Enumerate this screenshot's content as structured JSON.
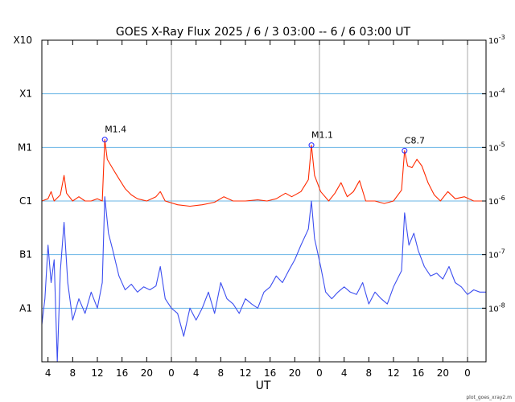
{
  "chart_data": {
    "type": "line",
    "title": "GOES X-Ray Flux   2025 /  6 /  3   03:00 --  6 /  6   03:00   UT",
    "xlabel": "UT",
    "footer": "plot_goes_xray2.m",
    "x_range_hours": [
      0,
      72
    ],
    "x_start_hour_of_day": 3,
    "y_scale": "log",
    "ylim": [
      1e-09,
      0.001
    ],
    "left_flare_classes": [
      {
        "label": "X10",
        "value": 0.001
      },
      {
        "label": "X1",
        "value": 0.0001
      },
      {
        "label": "M1",
        "value": 1e-05
      },
      {
        "label": "C1",
        "value": 1e-06
      },
      {
        "label": "B1",
        "value": 1e-07
      },
      {
        "label": "A1",
        "value": 1e-08
      }
    ],
    "right_ticks": [
      {
        "label": "10^-3",
        "value": 0.001
      },
      {
        "label": "10^-4",
        "value": 0.0001
      },
      {
        "label": "10^-5",
        "value": 1e-05
      },
      {
        "label": "10^-6",
        "value": 1e-06
      },
      {
        "label": "10^-7",
        "value": 1e-07
      },
      {
        "label": "10^-8",
        "value": 1e-08
      }
    ],
    "x_tick_labels": [
      "4",
      "8",
      "12",
      "16",
      "20",
      "0",
      "4",
      "8",
      "12",
      "16",
      "20",
      "0",
      "4",
      "8",
      "12",
      "16",
      "20",
      "0"
    ],
    "day_boundaries_hours": [
      21,
      45,
      69
    ],
    "annotations": [
      {
        "label": "M1.4",
        "x": 10.2,
        "y": 1.4e-05
      },
      {
        "label": "M1.1",
        "x": 43.7,
        "y": 1.1e-05
      },
      {
        "label": "C8.7",
        "x": 58.8,
        "y": 8.7e-06
      }
    ],
    "series": [
      {
        "color": "#ff2a00",
        "points": [
          [
            0,
            1e-06
          ],
          [
            1,
            1.1e-06
          ],
          [
            1.5,
            1.5e-06
          ],
          [
            2,
            1e-06
          ],
          [
            3,
            1.3e-06
          ],
          [
            3.6,
            3e-06
          ],
          [
            4,
            1.4e-06
          ],
          [
            5,
            1e-06
          ],
          [
            6,
            1.2e-06
          ],
          [
            7,
            1e-06
          ],
          [
            8,
            1e-06
          ],
          [
            9,
            1.1e-06
          ],
          [
            9.8,
            1e-06
          ],
          [
            10.2,
            1.4e-05
          ],
          [
            10.6,
            6e-06
          ],
          [
            11.5,
            4e-06
          ],
          [
            12.5,
            2.6e-06
          ],
          [
            13.5,
            1.7e-06
          ],
          [
            14.5,
            1.3e-06
          ],
          [
            15.5,
            1.1e-06
          ],
          [
            17,
            1e-06
          ],
          [
            18.5,
            1.2e-06
          ],
          [
            19.2,
            1.5e-06
          ],
          [
            20,
            1e-06
          ],
          [
            22,
            8.5e-07
          ],
          [
            24,
            8e-07
          ],
          [
            26,
            8.5e-07
          ],
          [
            28,
            9.5e-07
          ],
          [
            29.5,
            1.2e-06
          ],
          [
            31,
            1e-06
          ],
          [
            33,
            1e-06
          ],
          [
            35,
            1.05e-06
          ],
          [
            36.5,
            1e-06
          ],
          [
            38,
            1.1e-06
          ],
          [
            39.5,
            1.4e-06
          ],
          [
            40.5,
            1.2e-06
          ],
          [
            42,
            1.5e-06
          ],
          [
            43.2,
            2.5e-06
          ],
          [
            43.7,
            1.1e-05
          ],
          [
            44.2,
            3e-06
          ],
          [
            45.2,
            1.5e-06
          ],
          [
            46.5,
            1e-06
          ],
          [
            47.5,
            1.4e-06
          ],
          [
            48.5,
            2.2e-06
          ],
          [
            49.5,
            1.2e-06
          ],
          [
            50.5,
            1.5e-06
          ],
          [
            51.5,
            2.4e-06
          ],
          [
            52.5,
            1e-06
          ],
          [
            54,
            1e-06
          ],
          [
            55.5,
            9e-07
          ],
          [
            57,
            1e-06
          ],
          [
            58.3,
            1.6e-06
          ],
          [
            58.8,
            8.7e-06
          ],
          [
            59.3,
            4.5e-06
          ],
          [
            60,
            4.2e-06
          ],
          [
            60.8,
            6e-06
          ],
          [
            61.6,
            4.5e-06
          ],
          [
            62.6,
            2.2e-06
          ],
          [
            63.6,
            1.3e-06
          ],
          [
            64.6,
            1e-06
          ],
          [
            65.8,
            1.5e-06
          ],
          [
            67,
            1.1e-06
          ],
          [
            68.5,
            1.2e-06
          ],
          [
            70,
            1e-06
          ],
          [
            72,
            1e-06
          ]
        ]
      },
      {
        "color": "#3d4ff0",
        "points": [
          [
            0,
            5e-09
          ],
          [
            0.5,
            1.5e-08
          ],
          [
            1,
            1.5e-07
          ],
          [
            1.5,
            3e-08
          ],
          [
            2,
            8e-08
          ],
          [
            2.5,
            1e-09
          ],
          [
            3,
            5e-08
          ],
          [
            3.6,
            4e-07
          ],
          [
            4.2,
            3e-08
          ],
          [
            5,
            6e-09
          ],
          [
            6,
            1.5e-08
          ],
          [
            7,
            8e-09
          ],
          [
            8,
            2e-08
          ],
          [
            9,
            1e-08
          ],
          [
            9.8,
            3e-08
          ],
          [
            10.2,
            1.2e-06
          ],
          [
            10.8,
            2.5e-07
          ],
          [
            11.5,
            1.2e-07
          ],
          [
            12.5,
            4e-08
          ],
          [
            13.5,
            2.2e-08
          ],
          [
            14.5,
            2.8e-08
          ],
          [
            15.5,
            2e-08
          ],
          [
            16.5,
            2.5e-08
          ],
          [
            17.5,
            2.2e-08
          ],
          [
            18.5,
            2.6e-08
          ],
          [
            19.2,
            6e-08
          ],
          [
            20,
            1.5e-08
          ],
          [
            21,
            1e-08
          ],
          [
            22,
            8e-09
          ],
          [
            23,
            3e-09
          ],
          [
            24,
            1e-08
          ],
          [
            25,
            6e-09
          ],
          [
            26,
            1e-08
          ],
          [
            27,
            2e-08
          ],
          [
            28,
            8e-09
          ],
          [
            29,
            3e-08
          ],
          [
            30,
            1.5e-08
          ],
          [
            31,
            1.2e-08
          ],
          [
            32,
            8e-09
          ],
          [
            33,
            1.5e-08
          ],
          [
            34,
            1.2e-08
          ],
          [
            35,
            1e-08
          ],
          [
            36,
            2e-08
          ],
          [
            37,
            2.5e-08
          ],
          [
            38,
            4e-08
          ],
          [
            39,
            3e-08
          ],
          [
            40,
            5e-08
          ],
          [
            41,
            8e-08
          ],
          [
            42,
            1.5e-07
          ],
          [
            43.2,
            3e-07
          ],
          [
            43.7,
            1e-06
          ],
          [
            44.2,
            2e-07
          ],
          [
            45.2,
            6e-08
          ],
          [
            46,
            2e-08
          ],
          [
            47,
            1.5e-08
          ],
          [
            48,
            2e-08
          ],
          [
            49,
            2.5e-08
          ],
          [
            50,
            2e-08
          ],
          [
            51,
            1.8e-08
          ],
          [
            52,
            3e-08
          ],
          [
            53,
            1.2e-08
          ],
          [
            54,
            2e-08
          ],
          [
            55,
            1.5e-08
          ],
          [
            56,
            1.2e-08
          ],
          [
            57,
            2.5e-08
          ],
          [
            58.3,
            5e-08
          ],
          [
            58.8,
            6e-07
          ],
          [
            59.5,
            1.5e-07
          ],
          [
            60.3,
            2.5e-07
          ],
          [
            61,
            1.2e-07
          ],
          [
            62,
            6e-08
          ],
          [
            63,
            4e-08
          ],
          [
            64,
            4.5e-08
          ],
          [
            65,
            3.5e-08
          ],
          [
            66,
            6e-08
          ],
          [
            67,
            3e-08
          ],
          [
            68,
            2.5e-08
          ],
          [
            69,
            1.8e-08
          ],
          [
            70,
            2.2e-08
          ],
          [
            71,
            2e-08
          ],
          [
            72,
            2e-08
          ]
        ]
      }
    ]
  }
}
